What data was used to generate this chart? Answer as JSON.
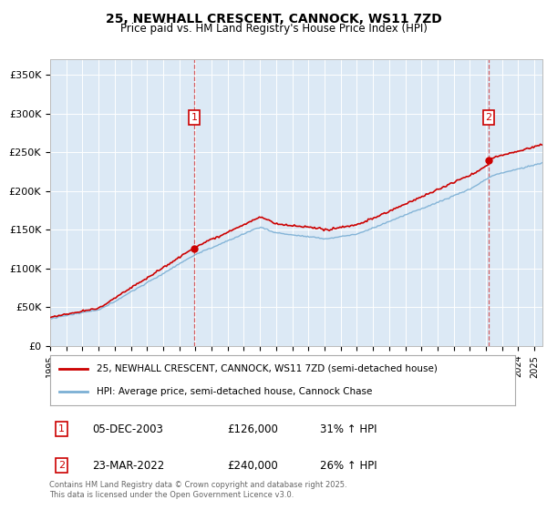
{
  "title": "25, NEWHALL CRESCENT, CANNOCK, WS11 7ZD",
  "subtitle": "Price paid vs. HM Land Registry's House Price Index (HPI)",
  "legend_red": "25, NEWHALL CRESCENT, CANNOCK, WS11 7ZD (semi-detached house)",
  "legend_blue": "HPI: Average price, semi-detached house, Cannock Chase",
  "plot_bg": "#dce9f5",
  "red_color": "#cc0000",
  "blue_color": "#7bafd4",
  "sale1_date": "05-DEC-2003",
  "sale1_price": 126000,
  "sale1_pct": "31%",
  "sale2_date": "23-MAR-2022",
  "sale2_price": 240000,
  "sale2_pct": "26%",
  "footer": "Contains HM Land Registry data © Crown copyright and database right 2025.\nThis data is licensed under the Open Government Licence v3.0.",
  "ylim": [
    0,
    370000
  ],
  "yticks": [
    0,
    50000,
    100000,
    150000,
    200000,
    250000,
    300000,
    350000
  ],
  "ytick_labels": [
    "£0",
    "£50K",
    "£100K",
    "£150K",
    "£200K",
    "£250K",
    "£300K",
    "£350K"
  ],
  "xlim_start": 1995.0,
  "xlim_end": 2025.5
}
